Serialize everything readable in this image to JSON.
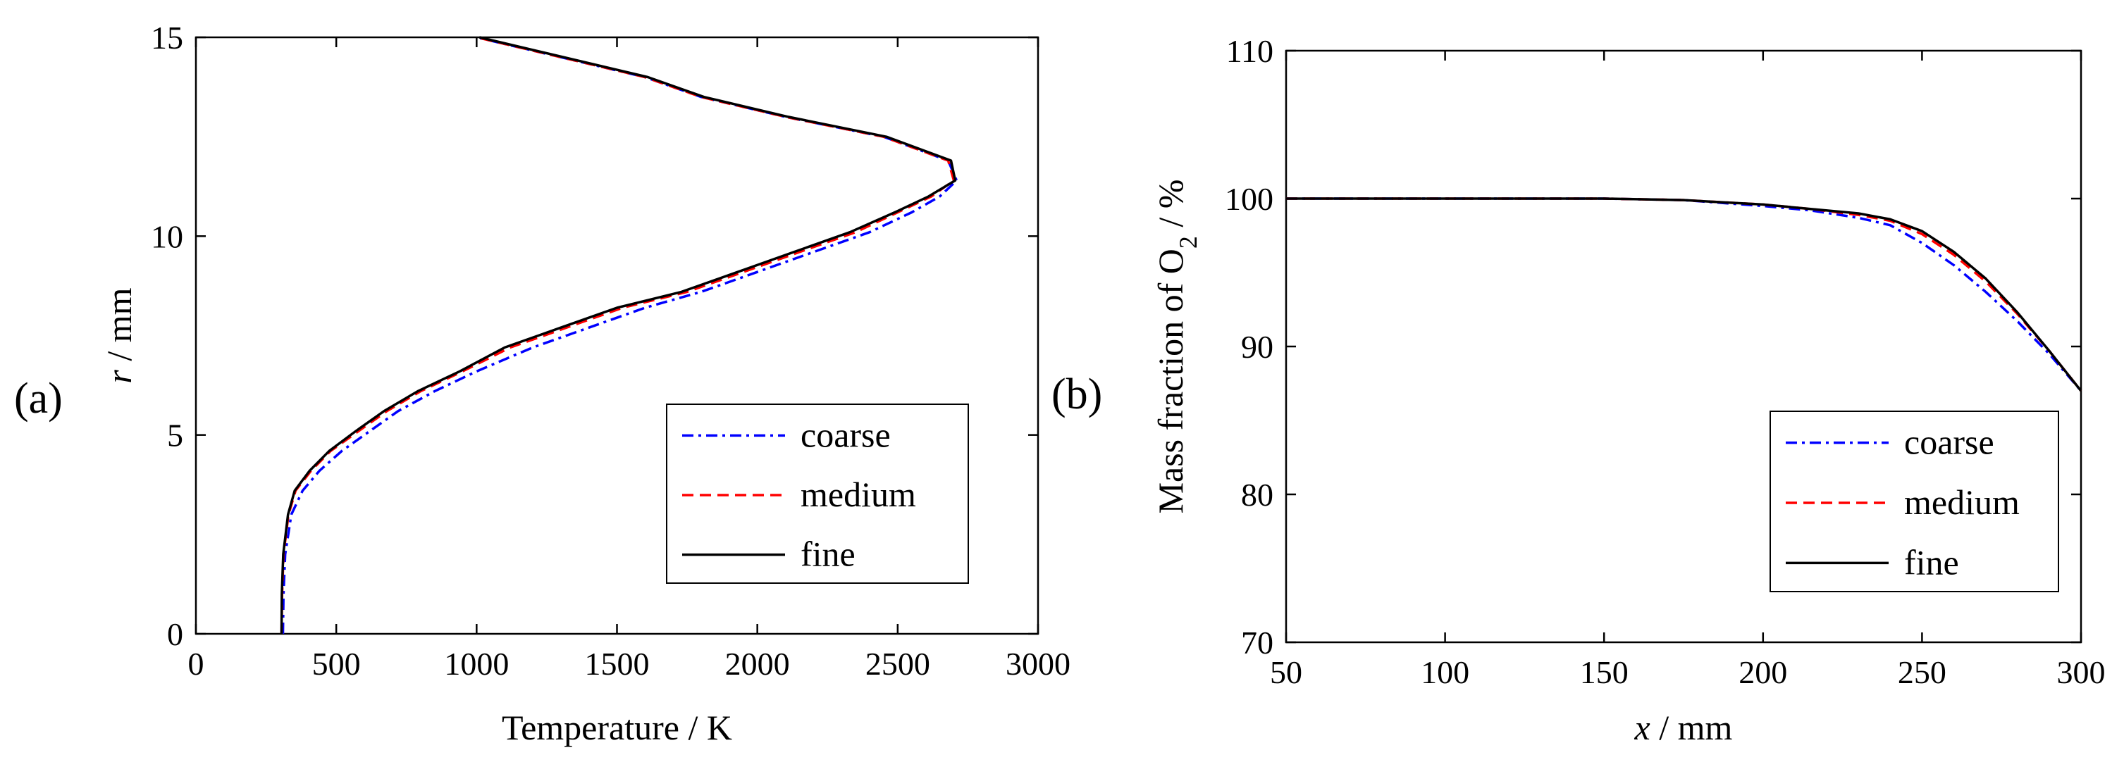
{
  "chart_data": [
    {
      "panel_label": "(a)",
      "type": "line",
      "xlabel": "Temperature / K",
      "ylabel_italic": "r",
      "ylabel_rest": " / mm",
      "xlim": [
        0,
        3000
      ],
      "ylim": [
        0,
        15
      ],
      "xticks": [
        0,
        500,
        1000,
        1500,
        2000,
        2500,
        3000
      ],
      "yticks": [
        0,
        5,
        10,
        15
      ],
      "grid": false,
      "legend_position": "bottom-right",
      "series": [
        {
          "name": "coarse",
          "color": "#0000ff",
          "dash": "dashdot",
          "points": [
            [
              310,
              0
            ],
            [
              312,
              1
            ],
            [
              318,
              2
            ],
            [
              340,
              3
            ],
            [
              380,
              3.6
            ],
            [
              440,
              4.1
            ],
            [
              520,
              4.6
            ],
            [
              620,
              5.1
            ],
            [
              720,
              5.6
            ],
            [
              850,
              6.1
            ],
            [
              1000,
              6.6
            ],
            [
              1200,
              7.2
            ],
            [
              1400,
              7.7
            ],
            [
              1600,
              8.2
            ],
            [
              1800,
              8.6
            ],
            [
              2000,
              9.1
            ],
            [
              2200,
              9.6
            ],
            [
              2400,
              10.1
            ],
            [
              2550,
              10.6
            ],
            [
              2650,
              11.0
            ],
            [
              2710,
              11.4
            ],
            [
              2680,
              11.9
            ],
            [
              2450,
              12.5
            ],
            [
              2100,
              13.0
            ],
            [
              1800,
              13.5
            ],
            [
              1600,
              14.0
            ],
            [
              1300,
              14.5
            ],
            [
              1000,
              15
            ]
          ]
        },
        {
          "name": "medium",
          "color": "#ff0000",
          "dash": "dashed",
          "points": [
            [
              305,
              0
            ],
            [
              307,
              1
            ],
            [
              312,
              2
            ],
            [
              330,
              3
            ],
            [
              355,
              3.6
            ],
            [
              410,
              4.1
            ],
            [
              480,
              4.6
            ],
            [
              580,
              5.1
            ],
            [
              680,
              5.6
            ],
            [
              800,
              6.1
            ],
            [
              950,
              6.6
            ],
            [
              1120,
              7.2
            ],
            [
              1320,
              7.7
            ],
            [
              1520,
              8.2
            ],
            [
              1750,
              8.6
            ],
            [
              1950,
              9.1
            ],
            [
              2150,
              9.6
            ],
            [
              2350,
              10.1
            ],
            [
              2500,
              10.6
            ],
            [
              2620,
              11.0
            ],
            [
              2700,
              11.4
            ],
            [
              2680,
              11.9
            ],
            [
              2450,
              12.5
            ],
            [
              2100,
              13.0
            ],
            [
              1800,
              13.5
            ],
            [
              1600,
              14.0
            ],
            [
              1300,
              14.5
            ],
            [
              1000,
              15
            ]
          ]
        },
        {
          "name": "fine",
          "color": "#000000",
          "dash": "solid",
          "points": [
            [
              305,
              0
            ],
            [
              306,
              1
            ],
            [
              311,
              2
            ],
            [
              328,
              3
            ],
            [
              352,
              3.6
            ],
            [
              405,
              4.1
            ],
            [
              475,
              4.6
            ],
            [
              570,
              5.1
            ],
            [
              670,
              5.6
            ],
            [
              790,
              6.1
            ],
            [
              940,
              6.6
            ],
            [
              1100,
              7.2
            ],
            [
              1300,
              7.7
            ],
            [
              1500,
              8.2
            ],
            [
              1730,
              8.6
            ],
            [
              1930,
              9.1
            ],
            [
              2130,
              9.6
            ],
            [
              2330,
              10.1
            ],
            [
              2490,
              10.6
            ],
            [
              2610,
              11.0
            ],
            [
              2705,
              11.4
            ],
            [
              2690,
              11.9
            ],
            [
              2460,
              12.5
            ],
            [
              2110,
              13.0
            ],
            [
              1810,
              13.5
            ],
            [
              1610,
              14.0
            ],
            [
              1310,
              14.5
            ],
            [
              1010,
              15
            ]
          ]
        }
      ]
    },
    {
      "panel_label": "(b)",
      "type": "line",
      "xlabel_italic": "x",
      "xlabel_rest": " / mm",
      "ylabel_main": "Mass fraction of O",
      "ylabel_sub": "2",
      "ylabel_tail": " / %",
      "xlim": [
        50,
        300
      ],
      "ylim": [
        70,
        110
      ],
      "xticks": [
        50,
        100,
        150,
        200,
        250,
        300
      ],
      "yticks": [
        70,
        80,
        90,
        100,
        110
      ],
      "grid": false,
      "legend_position": "bottom-right",
      "series": [
        {
          "name": "coarse",
          "color": "#0000ff",
          "dash": "dashdot",
          "points": [
            [
              50,
              100
            ],
            [
              100,
              100
            ],
            [
              150,
              100
            ],
            [
              175,
              99.9
            ],
            [
              200,
              99.5
            ],
            [
              215,
              99.2
            ],
            [
              230,
              98.7
            ],
            [
              240,
              98.2
            ],
            [
              250,
              97.0
            ],
            [
              260,
              95.5
            ],
            [
              270,
              93.7
            ],
            [
              280,
              91.7
            ],
            [
              290,
              89.5
            ],
            [
              300,
              87
            ]
          ]
        },
        {
          "name": "medium",
          "color": "#ff0000",
          "dash": "dashed",
          "points": [
            [
              50,
              100
            ],
            [
              100,
              100
            ],
            [
              150,
              100
            ],
            [
              175,
              99.9
            ],
            [
              200,
              99.6
            ],
            [
              215,
              99.3
            ],
            [
              230,
              98.9
            ],
            [
              240,
              98.5
            ],
            [
              250,
              97.6
            ],
            [
              260,
              96.2
            ],
            [
              270,
              94.4
            ],
            [
              280,
              92.2
            ],
            [
              290,
              89.7
            ],
            [
              300,
              87
            ]
          ]
        },
        {
          "name": "fine",
          "color": "#000000",
          "dash": "solid",
          "points": [
            [
              50,
              100
            ],
            [
              100,
              100
            ],
            [
              150,
              100
            ],
            [
              175,
              99.9
            ],
            [
              200,
              99.6
            ],
            [
              215,
              99.3
            ],
            [
              230,
              99.0
            ],
            [
              240,
              98.6
            ],
            [
              250,
              97.8
            ],
            [
              260,
              96.4
            ],
            [
              270,
              94.6
            ],
            [
              280,
              92.3
            ],
            [
              290,
              89.7
            ],
            [
              300,
              87
            ]
          ]
        }
      ]
    }
  ]
}
